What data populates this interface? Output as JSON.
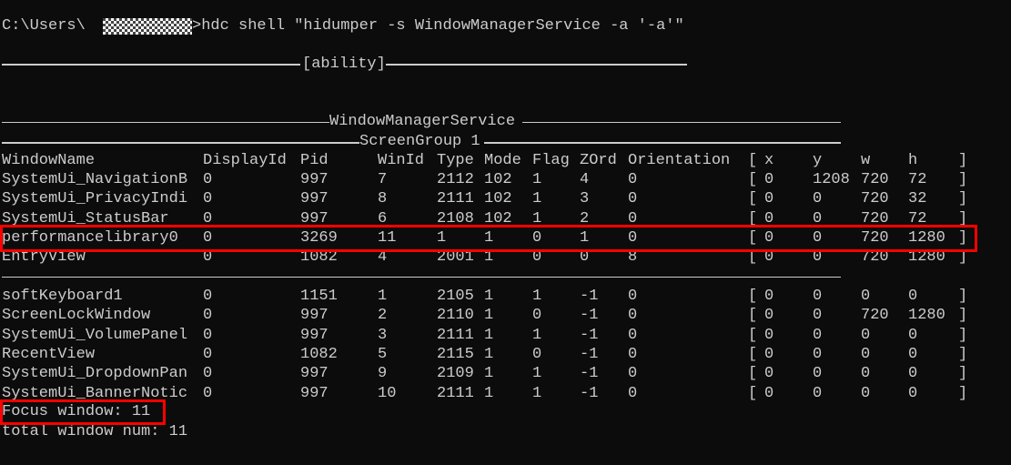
{
  "terminal": {
    "prompt_prefix": "C:\\Users\\",
    "command": ">hdc shell \"hidumper -s WindowManagerService -a '-a'\"",
    "section_ability": "[ability]",
    "section_service": "WindowManagerService",
    "section_group": "ScreenGroup 1",
    "headers": [
      "WindowName",
      "DisplayId",
      "Pid",
      "WinId",
      "Type",
      "Mode",
      "Flag",
      "ZOrd",
      "Orientation",
      "[",
      "x",
      "y",
      "w",
      "h",
      "]"
    ],
    "rows_visible": [
      [
        "SystemUi_NavigationB",
        "0",
        "997",
        "7",
        "2112",
        "102",
        "1",
        "4",
        "0",
        "[",
        "0",
        "1208",
        "720",
        "72",
        "]"
      ],
      [
        "SystemUi_PrivacyIndi",
        "0",
        "997",
        "8",
        "2111",
        "102",
        "1",
        "3",
        "0",
        "[",
        "0",
        "0",
        "720",
        "32",
        "]"
      ],
      [
        "SystemUi_StatusBar",
        "0",
        "997",
        "6",
        "2108",
        "102",
        "1",
        "2",
        "0",
        "[",
        "0",
        "0",
        "720",
        "72",
        "]"
      ],
      [
        "performancelibrary0",
        "0",
        "3269",
        "11",
        "1",
        "1",
        "0",
        "1",
        "0",
        "[",
        "0",
        "0",
        "720",
        "1280",
        "]"
      ],
      [
        "EntryView",
        "0",
        "1082",
        "4",
        "2001",
        "1",
        "0",
        "0",
        "8",
        "[",
        "0",
        "0",
        "720",
        "1280",
        "]"
      ]
    ],
    "rows_hidden": [
      [
        "softKeyboard1",
        "0",
        "1151",
        "1",
        "2105",
        "1",
        "1",
        "-1",
        "0",
        "[",
        "0",
        "0",
        "0",
        "0",
        "]"
      ],
      [
        "ScreenLockWindow",
        "0",
        "997",
        "2",
        "2110",
        "1",
        "0",
        "-1",
        "0",
        "[",
        "0",
        "0",
        "720",
        "1280",
        "]"
      ],
      [
        "SystemUi_VolumePanel",
        "0",
        "997",
        "3",
        "2111",
        "1",
        "1",
        "-1",
        "0",
        "[",
        "0",
        "0",
        "0",
        "0",
        "]"
      ],
      [
        "RecentView",
        "0",
        "1082",
        "5",
        "2115",
        "1",
        "0",
        "-1",
        "0",
        "[",
        "0",
        "0",
        "0",
        "0",
        "]"
      ],
      [
        "SystemUi_DropdownPan",
        "0",
        "997",
        "9",
        "2109",
        "1",
        "1",
        "-1",
        "0",
        "[",
        "0",
        "0",
        "0",
        "0",
        "]"
      ],
      [
        "SystemUi_BannerNotic",
        "0",
        "997",
        "10",
        "2111",
        "1",
        "1",
        "-1",
        "0",
        "[",
        "0",
        "0",
        "0",
        "0",
        "]"
      ]
    ],
    "focus_window": "Focus window: 11",
    "total_window_num": "total window num: 11",
    "highlight_color": "#ff0000"
  }
}
